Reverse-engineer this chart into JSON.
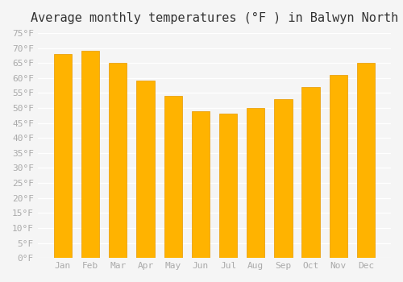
{
  "months": [
    "Jan",
    "Feb",
    "Mar",
    "Apr",
    "May",
    "Jun",
    "Jul",
    "Aug",
    "Sep",
    "Oct",
    "Nov",
    "Dec"
  ],
  "values": [
    68,
    69,
    65,
    59,
    54,
    49,
    48,
    50,
    53,
    57,
    61,
    65
  ],
  "bar_color": "#FFB300",
  "bar_edge_color": "#E69900",
  "title": "Average monthly temperatures (°F ) in Balwyn North",
  "title_fontsize": 11,
  "ylabel": "",
  "ylim": [
    0,
    75
  ],
  "ytick_step": 5,
  "background_color": "#f5f5f5",
  "grid_color": "#ffffff",
  "tick_label_color": "#aaaaaa",
  "tick_label_fontsize": 8
}
